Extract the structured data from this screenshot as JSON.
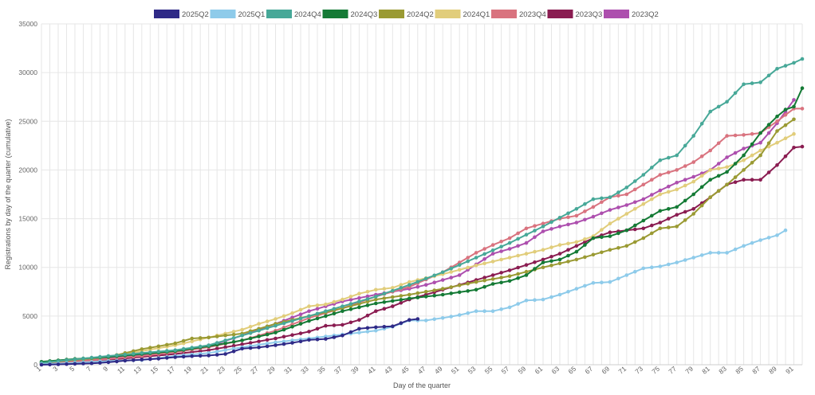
{
  "chart_data": {
    "type": "line",
    "xlabel": "Day of the quarter",
    "ylabel": "Registrations by day of the quarter (cumulative)",
    "xlim": [
      1,
      92
    ],
    "ylim": [
      0,
      35000
    ],
    "y_ticks": [
      "0",
      "5000",
      "10000",
      "15000",
      "20000",
      "25000",
      "30000",
      "35000"
    ],
    "x_ticks": [
      "1",
      "3",
      "5",
      "7",
      "9",
      "11",
      "13",
      "15",
      "17",
      "19",
      "21",
      "23",
      "25",
      "27",
      "29",
      "31",
      "33",
      "35",
      "37",
      "39",
      "41",
      "43",
      "45",
      "47",
      "49",
      "51",
      "53",
      "55",
      "57",
      "59",
      "61",
      "63",
      "65",
      "67",
      "69",
      "71",
      "73",
      "75",
      "77",
      "79",
      "81",
      "83",
      "85",
      "87",
      "89",
      "91"
    ],
    "grid": true,
    "legend_position": "top",
    "series": [
      {
        "name": "2025Q2",
        "color": "#2f2a87",
        "points": [
          [
            1,
            0
          ],
          [
            3,
            40
          ],
          [
            5,
            90
          ],
          [
            7,
            150
          ],
          [
            9,
            250
          ],
          [
            11,
            420
          ],
          [
            13,
            520
          ],
          [
            15,
            620
          ],
          [
            17,
            780
          ],
          [
            19,
            880
          ],
          [
            21,
            950
          ],
          [
            23,
            1100
          ],
          [
            25,
            1650
          ],
          [
            27,
            1780
          ],
          [
            29,
            2000
          ],
          [
            31,
            2250
          ],
          [
            33,
            2550
          ],
          [
            35,
            2650
          ],
          [
            37,
            3000
          ],
          [
            39,
            3700
          ],
          [
            41,
            3850
          ],
          [
            43,
            3950
          ],
          [
            45,
            4600
          ],
          [
            46,
            4700
          ]
        ]
      },
      {
        "name": "2025Q1",
        "color": "#8ecbea",
        "points": [
          [
            1,
            50
          ],
          [
            5,
            200
          ],
          [
            9,
            380
          ],
          [
            13,
            480
          ],
          [
            17,
            900
          ],
          [
            21,
            1200
          ],
          [
            25,
            1800
          ],
          [
            29,
            2300
          ],
          [
            33,
            2700
          ],
          [
            37,
            3100
          ],
          [
            41,
            3500
          ],
          [
            43,
            3900
          ],
          [
            45,
            4550
          ],
          [
            47,
            4550
          ],
          [
            49,
            4800
          ],
          [
            51,
            5100
          ],
          [
            53,
            5500
          ],
          [
            55,
            5500
          ],
          [
            57,
            5900
          ],
          [
            59,
            6600
          ],
          [
            61,
            6700
          ],
          [
            63,
            7200
          ],
          [
            65,
            7800
          ],
          [
            67,
            8400
          ],
          [
            69,
            8500
          ],
          [
            71,
            9200
          ],
          [
            73,
            9900
          ],
          [
            75,
            10100
          ],
          [
            77,
            10500
          ],
          [
            79,
            11000
          ],
          [
            81,
            11500
          ],
          [
            83,
            11500
          ],
          [
            85,
            12200
          ],
          [
            87,
            12800
          ],
          [
            89,
            13300
          ],
          [
            90,
            13800
          ]
        ]
      },
      {
        "name": "2024Q4",
        "color": "#47a898",
        "points": [
          [
            1,
            200
          ],
          [
            5,
            550
          ],
          [
            9,
            900
          ],
          [
            13,
            1200
          ],
          [
            17,
            1500
          ],
          [
            21,
            2000
          ],
          [
            25,
            3000
          ],
          [
            29,
            4000
          ],
          [
            33,
            5000
          ],
          [
            37,
            6000
          ],
          [
            41,
            7000
          ],
          [
            45,
            8200
          ],
          [
            49,
            9500
          ],
          [
            53,
            11000
          ],
          [
            57,
            12500
          ],
          [
            61,
            14200
          ],
          [
            65,
            16000
          ],
          [
            67,
            17000
          ],
          [
            69,
            17200
          ],
          [
            71,
            18200
          ],
          [
            73,
            19500
          ],
          [
            75,
            21000
          ],
          [
            77,
            21500
          ],
          [
            79,
            23500
          ],
          [
            81,
            26000
          ],
          [
            83,
            27000
          ],
          [
            85,
            28800
          ],
          [
            87,
            29000
          ],
          [
            89,
            30400
          ],
          [
            91,
            31000
          ],
          [
            92,
            31400
          ]
        ]
      },
      {
        "name": "2024Q3",
        "color": "#147a35",
        "points": [
          [
            1,
            300
          ],
          [
            5,
            600
          ],
          [
            9,
            800
          ],
          [
            13,
            1100
          ],
          [
            17,
            1400
          ],
          [
            21,
            1900
          ],
          [
            25,
            2500
          ],
          [
            29,
            3300
          ],
          [
            33,
            4500
          ],
          [
            37,
            5500
          ],
          [
            41,
            6300
          ],
          [
            45,
            6800
          ],
          [
            49,
            7200
          ],
          [
            53,
            7700
          ],
          [
            55,
            8300
          ],
          [
            57,
            8600
          ],
          [
            59,
            9200
          ],
          [
            61,
            10500
          ],
          [
            63,
            10800
          ],
          [
            65,
            11600
          ],
          [
            67,
            13000
          ],
          [
            69,
            13200
          ],
          [
            71,
            13800
          ],
          [
            73,
            14800
          ],
          [
            75,
            15800
          ],
          [
            77,
            16200
          ],
          [
            79,
            17500
          ],
          [
            81,
            19000
          ],
          [
            83,
            19800
          ],
          [
            85,
            21500
          ],
          [
            87,
            23800
          ],
          [
            89,
            25500
          ],
          [
            90,
            26200
          ],
          [
            91,
            26500
          ],
          [
            92,
            28400
          ]
        ]
      },
      {
        "name": "2024Q2",
        "color": "#9a9a33",
        "points": [
          [
            1,
            200
          ],
          [
            5,
            500
          ],
          [
            9,
            800
          ],
          [
            13,
            1600
          ],
          [
            17,
            2200
          ],
          [
            19,
            2700
          ],
          [
            21,
            2800
          ],
          [
            25,
            3200
          ],
          [
            29,
            4200
          ],
          [
            33,
            5000
          ],
          [
            37,
            5800
          ],
          [
            41,
            6700
          ],
          [
            45,
            7200
          ],
          [
            49,
            7800
          ],
          [
            53,
            8500
          ],
          [
            57,
            9100
          ],
          [
            61,
            10000
          ],
          [
            63,
            10400
          ],
          [
            65,
            10800
          ],
          [
            67,
            11300
          ],
          [
            69,
            11800
          ],
          [
            71,
            12200
          ],
          [
            73,
            13000
          ],
          [
            75,
            14000
          ],
          [
            77,
            14200
          ],
          [
            79,
            15500
          ],
          [
            81,
            17200
          ],
          [
            83,
            18500
          ],
          [
            85,
            20000
          ],
          [
            87,
            21500
          ],
          [
            89,
            24000
          ],
          [
            91,
            25200
          ]
        ]
      },
      {
        "name": "2024Q1",
        "color": "#e1cd7b",
        "points": [
          [
            1,
            200
          ],
          [
            5,
            500
          ],
          [
            9,
            800
          ],
          [
            13,
            1400
          ],
          [
            17,
            2000
          ],
          [
            21,
            2800
          ],
          [
            25,
            3600
          ],
          [
            27,
            4200
          ],
          [
            29,
            4700
          ],
          [
            31,
            5300
          ],
          [
            33,
            6000
          ],
          [
            35,
            6200
          ],
          [
            37,
            6700
          ],
          [
            39,
            7300
          ],
          [
            41,
            7700
          ],
          [
            43,
            7900
          ],
          [
            45,
            8500
          ],
          [
            49,
            9300
          ],
          [
            53,
            10200
          ],
          [
            57,
            11000
          ],
          [
            61,
            11800
          ],
          [
            63,
            12300
          ],
          [
            65,
            12600
          ],
          [
            67,
            13200
          ],
          [
            69,
            14500
          ],
          [
            71,
            15500
          ],
          [
            73,
            16500
          ],
          [
            75,
            17500
          ],
          [
            77,
            18000
          ],
          [
            79,
            18800
          ],
          [
            81,
            20000
          ],
          [
            83,
            20300
          ],
          [
            85,
            21000
          ],
          [
            87,
            22000
          ],
          [
            89,
            22800
          ],
          [
            91,
            23700
          ]
        ]
      },
      {
        "name": "2023Q4",
        "color": "#d9737f",
        "points": [
          [
            1,
            100
          ],
          [
            5,
            300
          ],
          [
            9,
            600
          ],
          [
            13,
            900
          ],
          [
            17,
            1300
          ],
          [
            21,
            1800
          ],
          [
            25,
            2500
          ],
          [
            29,
            3500
          ],
          [
            33,
            4800
          ],
          [
            37,
            5800
          ],
          [
            41,
            7000
          ],
          [
            45,
            8000
          ],
          [
            49,
            9500
          ],
          [
            53,
            11500
          ],
          [
            55,
            12300
          ],
          [
            57,
            13000
          ],
          [
            59,
            14000
          ],
          [
            61,
            14500
          ],
          [
            63,
            15000
          ],
          [
            65,
            15300
          ],
          [
            67,
            16200
          ],
          [
            69,
            17200
          ],
          [
            71,
            17500
          ],
          [
            73,
            18500
          ],
          [
            75,
            19500
          ],
          [
            77,
            20000
          ],
          [
            79,
            20800
          ],
          [
            81,
            22000
          ],
          [
            83,
            23500
          ],
          [
            85,
            23600
          ],
          [
            87,
            23800
          ],
          [
            89,
            25000
          ],
          [
            91,
            26300
          ],
          [
            92,
            26300
          ]
        ]
      },
      {
        "name": "2023Q3",
        "color": "#8a1c51",
        "points": [
          [
            1,
            100
          ],
          [
            5,
            300
          ],
          [
            9,
            500
          ],
          [
            13,
            800
          ],
          [
            17,
            1100
          ],
          [
            21,
            1500
          ],
          [
            25,
            2100
          ],
          [
            29,
            2700
          ],
          [
            33,
            3400
          ],
          [
            35,
            4000
          ],
          [
            37,
            4100
          ],
          [
            39,
            4600
          ],
          [
            41,
            5500
          ],
          [
            43,
            6000
          ],
          [
            45,
            6700
          ],
          [
            49,
            7700
          ],
          [
            53,
            8700
          ],
          [
            57,
            9700
          ],
          [
            61,
            10800
          ],
          [
            63,
            11400
          ],
          [
            65,
            12200
          ],
          [
            67,
            13000
          ],
          [
            69,
            13600
          ],
          [
            71,
            13800
          ],
          [
            73,
            14000
          ],
          [
            75,
            14600
          ],
          [
            77,
            15400
          ],
          [
            79,
            16000
          ],
          [
            81,
            17200
          ],
          [
            83,
            18500
          ],
          [
            85,
            19000
          ],
          [
            87,
            19000
          ],
          [
            89,
            20500
          ],
          [
            91,
            22300
          ],
          [
            92,
            22400
          ]
        ]
      },
      {
        "name": "2023Q2",
        "color": "#ad4fae",
        "points": [
          [
            1,
            100
          ],
          [
            5,
            400
          ],
          [
            9,
            700
          ],
          [
            13,
            1000
          ],
          [
            17,
            1400
          ],
          [
            21,
            1900
          ],
          [
            25,
            3000
          ],
          [
            29,
            4200
          ],
          [
            33,
            5500
          ],
          [
            37,
            6500
          ],
          [
            41,
            7200
          ],
          [
            45,
            7800
          ],
          [
            47,
            8200
          ],
          [
            49,
            8700
          ],
          [
            51,
            9200
          ],
          [
            53,
            10300
          ],
          [
            55,
            11400
          ],
          [
            57,
            11900
          ],
          [
            59,
            12500
          ],
          [
            61,
            13700
          ],
          [
            63,
            14200
          ],
          [
            65,
            14600
          ],
          [
            67,
            15200
          ],
          [
            69,
            15900
          ],
          [
            71,
            16400
          ],
          [
            73,
            17000
          ],
          [
            75,
            17900
          ],
          [
            77,
            18700
          ],
          [
            79,
            19300
          ],
          [
            81,
            20000
          ],
          [
            83,
            21300
          ],
          [
            85,
            22200
          ],
          [
            87,
            22800
          ],
          [
            89,
            24800
          ],
          [
            91,
            27200
          ]
        ]
      }
    ]
  }
}
